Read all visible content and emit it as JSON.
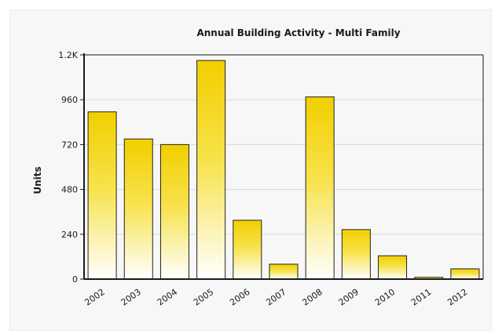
{
  "chart_data": {
    "type": "bar",
    "title": "Annual Building Activity - Multi Family",
    "xlabel": "",
    "ylabel": "Units",
    "categories": [
      "2002",
      "2003",
      "2004",
      "2005",
      "2006",
      "2007",
      "2008",
      "2009",
      "2010",
      "2011",
      "2012"
    ],
    "values": [
      895,
      750,
      720,
      1170,
      315,
      80,
      975,
      265,
      125,
      10,
      55
    ],
    "ylim": [
      0,
      1200
    ],
    "yticks": [
      0,
      240,
      480,
      720,
      960,
      1200
    ],
    "ytick_labels": [
      "0",
      "240",
      "480",
      "720",
      "960",
      "1.2K"
    ],
    "grid": true,
    "legend": "none",
    "colors": {
      "bar_top": "#f2cf00",
      "bar_bottom": "#ffffff",
      "bar_stroke": "#222222",
      "axis": "#1a1a1a",
      "grid": "#d9d9d9"
    }
  }
}
